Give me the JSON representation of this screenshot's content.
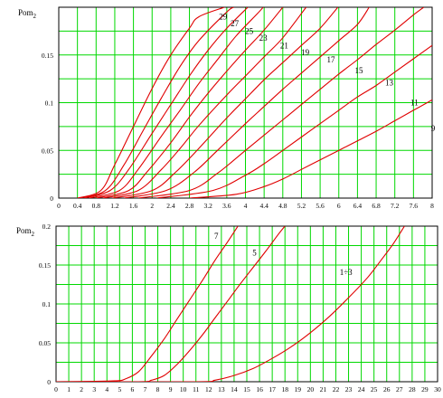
{
  "chart_data": [
    {
      "type": "line",
      "ylabel": "Pom",
      "ylabel_sub": "2",
      "xlim": [
        0,
        8
      ],
      "ylim": [
        0,
        0.2
      ],
      "xticks": [
        "0",
        "0.4",
        "0.8",
        "1.2",
        "1.6",
        "2",
        "2.4",
        "2.8",
        "3.2",
        "3.6",
        "4",
        "4.4",
        "4.8",
        "5.2",
        "5.6",
        "6",
        "6.4",
        "6.8",
        "7.2",
        "7.6",
        "8"
      ],
      "yticks": [
        "0",
        "0.05",
        "0.1",
        "0.15"
      ],
      "grid": true,
      "colors": {
        "curve": "#e00000",
        "grid": "#00d800"
      },
      "series": [
        {
          "name": "29",
          "points": [
            [
              0.4,
              0
            ],
            [
              0.9,
              0.008
            ],
            [
              1.2,
              0.035
            ],
            [
              1.6,
              0.075
            ],
            [
              2.0,
              0.115
            ],
            [
              2.4,
              0.15
            ],
            [
              2.8,
              0.178
            ],
            [
              3.0,
              0.19
            ],
            [
              3.55,
              0.2
            ]
          ]
        },
        {
          "name": "27",
          "points": [
            [
              0.45,
              0
            ],
            [
              1.0,
              0.008
            ],
            [
              1.4,
              0.035
            ],
            [
              1.8,
              0.07
            ],
            [
              2.2,
              0.105
            ],
            [
              2.6,
              0.138
            ],
            [
              3.0,
              0.165
            ],
            [
              3.6,
              0.195
            ],
            [
              3.75,
              0.2
            ]
          ]
        },
        {
          "name": "25",
          "points": [
            [
              0.55,
              0
            ],
            [
              1.1,
              0.008
            ],
            [
              1.5,
              0.03
            ],
            [
              2.0,
              0.068
            ],
            [
              2.4,
              0.098
            ],
            [
              2.8,
              0.128
            ],
            [
              3.2,
              0.155
            ],
            [
              3.6,
              0.178
            ],
            [
              4.05,
              0.2
            ]
          ]
        },
        {
          "name": "23",
          "points": [
            [
              0.65,
              0
            ],
            [
              1.3,
              0.008
            ],
            [
              1.7,
              0.03
            ],
            [
              2.2,
              0.065
            ],
            [
              2.6,
              0.092
            ],
            [
              3.0,
              0.12
            ],
            [
              3.4,
              0.145
            ],
            [
              3.8,
              0.17
            ],
            [
              4.25,
              0.193
            ],
            [
              4.38,
              0.2
            ]
          ]
        },
        {
          "name": "21",
          "points": [
            [
              0.8,
              0
            ],
            [
              1.5,
              0.008
            ],
            [
              1.9,
              0.028
            ],
            [
              2.4,
              0.058
            ],
            [
              2.8,
              0.085
            ],
            [
              3.2,
              0.11
            ],
            [
              3.6,
              0.133
            ],
            [
              4.0,
              0.155
            ],
            [
              4.4,
              0.176
            ],
            [
              4.8,
              0.2
            ]
          ]
        },
        {
          "name": "19",
          "points": [
            [
              0.95,
              0
            ],
            [
              1.7,
              0.008
            ],
            [
              2.2,
              0.03
            ],
            [
              2.6,
              0.052
            ],
            [
              3.0,
              0.076
            ],
            [
              3.6,
              0.108
            ],
            [
              4.0,
              0.128
            ],
            [
              4.4,
              0.148
            ],
            [
              4.8,
              0.168
            ],
            [
              5.3,
              0.2
            ]
          ]
        },
        {
          "name": "17",
          "points": [
            [
              1.15,
              0
            ],
            [
              2.0,
              0.008
            ],
            [
              2.5,
              0.027
            ],
            [
              3.0,
              0.052
            ],
            [
              3.6,
              0.084
            ],
            [
              4.0,
              0.104
            ],
            [
              4.4,
              0.124
            ],
            [
              4.8,
              0.142
            ],
            [
              5.2,
              0.16
            ],
            [
              5.6,
              0.178
            ],
            [
              5.98,
              0.2
            ]
          ]
        },
        {
          "name": "15",
          "points": [
            [
              1.4,
              0
            ],
            [
              2.3,
              0.008
            ],
            [
              2.9,
              0.027
            ],
            [
              3.4,
              0.05
            ],
            [
              4.0,
              0.078
            ],
            [
              4.4,
              0.096
            ],
            [
              4.8,
              0.114
            ],
            [
              5.2,
              0.131
            ],
            [
              5.6,
              0.148
            ],
            [
              6.0,
              0.165
            ],
            [
              6.4,
              0.182
            ],
            [
              6.65,
              0.2
            ]
          ]
        },
        {
          "name": "13",
          "points": [
            [
              1.7,
              0
            ],
            [
              2.8,
              0.008
            ],
            [
              3.4,
              0.026
            ],
            [
              4.0,
              0.05
            ],
            [
              4.4,
              0.066
            ],
            [
              4.8,
              0.082
            ],
            [
              5.2,
              0.098
            ],
            [
              5.6,
              0.114
            ],
            [
              6.0,
              0.13
            ],
            [
              6.4,
              0.145
            ],
            [
              6.8,
              0.161
            ],
            [
              7.2,
              0.176
            ],
            [
              7.6,
              0.192
            ],
            [
              7.82,
              0.2
            ]
          ]
        },
        {
          "name": "11",
          "points": [
            [
              2.1,
              0
            ],
            [
              3.3,
              0.008
            ],
            [
              4.0,
              0.024
            ],
            [
              4.4,
              0.036
            ],
            [
              4.8,
              0.05
            ],
            [
              5.2,
              0.064
            ],
            [
              5.6,
              0.078
            ],
            [
              6.0,
              0.092
            ],
            [
              6.4,
              0.106
            ],
            [
              6.8,
              0.118
            ],
            [
              7.2,
              0.132
            ],
            [
              7.6,
              0.146
            ],
            [
              8.0,
              0.16
            ]
          ]
        },
        {
          "name": "9",
          "points": [
            [
              2.8,
              0
            ],
            [
              3.8,
              0.004
            ],
            [
              4.4,
              0.012
            ],
            [
              4.8,
              0.02
            ],
            [
              5.2,
              0.03
            ],
            [
              5.6,
              0.04
            ],
            [
              6.0,
              0.05
            ],
            [
              6.4,
              0.06
            ],
            [
              6.8,
              0.07
            ],
            [
              7.2,
              0.081
            ],
            [
              7.6,
              0.092
            ],
            [
              8.0,
              0.103
            ]
          ]
        }
      ],
      "curve_labels": [
        {
          "text": "29",
          "x": 3.52,
          "y": 0.187
        },
        {
          "text": "27",
          "x": 3.77,
          "y": 0.18
        },
        {
          "text": "25",
          "x": 4.08,
          "y": 0.172
        },
        {
          "text": "23",
          "x": 4.38,
          "y": 0.165
        },
        {
          "text": "21",
          "x": 4.83,
          "y": 0.157
        },
        {
          "text": "19",
          "x": 5.28,
          "y": 0.15
        },
        {
          "text": "17",
          "x": 5.83,
          "y": 0.142
        },
        {
          "text": "15",
          "x": 6.43,
          "y": 0.131
        },
        {
          "text": "13",
          "x": 7.08,
          "y": 0.118
        },
        {
          "text": "11",
          "x": 7.62,
          "y": 0.097
        },
        {
          "text": "9",
          "x": 8.02,
          "y": 0.07
        }
      ]
    },
    {
      "type": "line",
      "ylabel": "Pom",
      "ylabel_sub": "2",
      "xlim": [
        0,
        30
      ],
      "ylim": [
        0,
        0.2
      ],
      "xticks": [
        "0",
        "1",
        "2",
        "3",
        "4",
        "5",
        "6",
        "7",
        "8",
        "9",
        "10",
        "11",
        "12",
        "13",
        "14",
        "15",
        "16",
        "17",
        "18",
        "19",
        "20",
        "21",
        "22",
        "23",
        "24",
        "25",
        "26",
        "27",
        "28",
        "29",
        "30"
      ],
      "yticks": [
        "0",
        "0.05",
        "0.1",
        "0.15",
        "0.2"
      ],
      "grid": true,
      "colors": {
        "curve": "#e00000",
        "grid": "#00d800"
      },
      "series": [
        {
          "name": "7",
          "points": [
            [
              0,
              0
            ],
            [
              4.5,
              0.001
            ],
            [
              5.5,
              0.004
            ],
            [
              6.5,
              0.013
            ],
            [
              7.5,
              0.033
            ],
            [
              8.5,
              0.055
            ],
            [
              9.5,
              0.08
            ],
            [
              10.5,
              0.105
            ],
            [
              11.5,
              0.13
            ],
            [
              12.5,
              0.156
            ],
            [
              13.5,
              0.18
            ],
            [
              14.3,
              0.2
            ]
          ]
        },
        {
          "name": "5",
          "points": [
            [
              0,
              0
            ],
            [
              6.5,
              0.0
            ],
            [
              7.5,
              0.002
            ],
            [
              8.5,
              0.008
            ],
            [
              9.5,
              0.022
            ],
            [
              10.5,
              0.04
            ],
            [
              11.5,
              0.06
            ],
            [
              12.5,
              0.082
            ],
            [
              13.5,
              0.104
            ],
            [
              14.5,
              0.126
            ],
            [
              15.5,
              0.147
            ],
            [
              16.5,
              0.168
            ],
            [
              17.5,
              0.19
            ],
            [
              18.0,
              0.2
            ]
          ]
        },
        {
          "name": "1÷3",
          "points": [
            [
              0,
              0
            ],
            [
              11.0,
              0.0
            ],
            [
              12.5,
              0.002
            ],
            [
              14.0,
              0.008
            ],
            [
              15.5,
              0.017
            ],
            [
              17.0,
              0.03
            ],
            [
              18.5,
              0.045
            ],
            [
              20.0,
              0.063
            ],
            [
              21.5,
              0.084
            ],
            [
              23.0,
              0.108
            ],
            [
              24.5,
              0.134
            ],
            [
              25.5,
              0.155
            ],
            [
              26.5,
              0.177
            ],
            [
              27.4,
              0.2
            ]
          ]
        }
      ],
      "curve_labels": [
        {
          "text": "7",
          "x": 12.6,
          "y": 0.184
        },
        {
          "text": "5",
          "x": 15.6,
          "y": 0.162
        },
        {
          "text": "1÷3",
          "x": 22.8,
          "y": 0.137
        }
      ]
    }
  ]
}
